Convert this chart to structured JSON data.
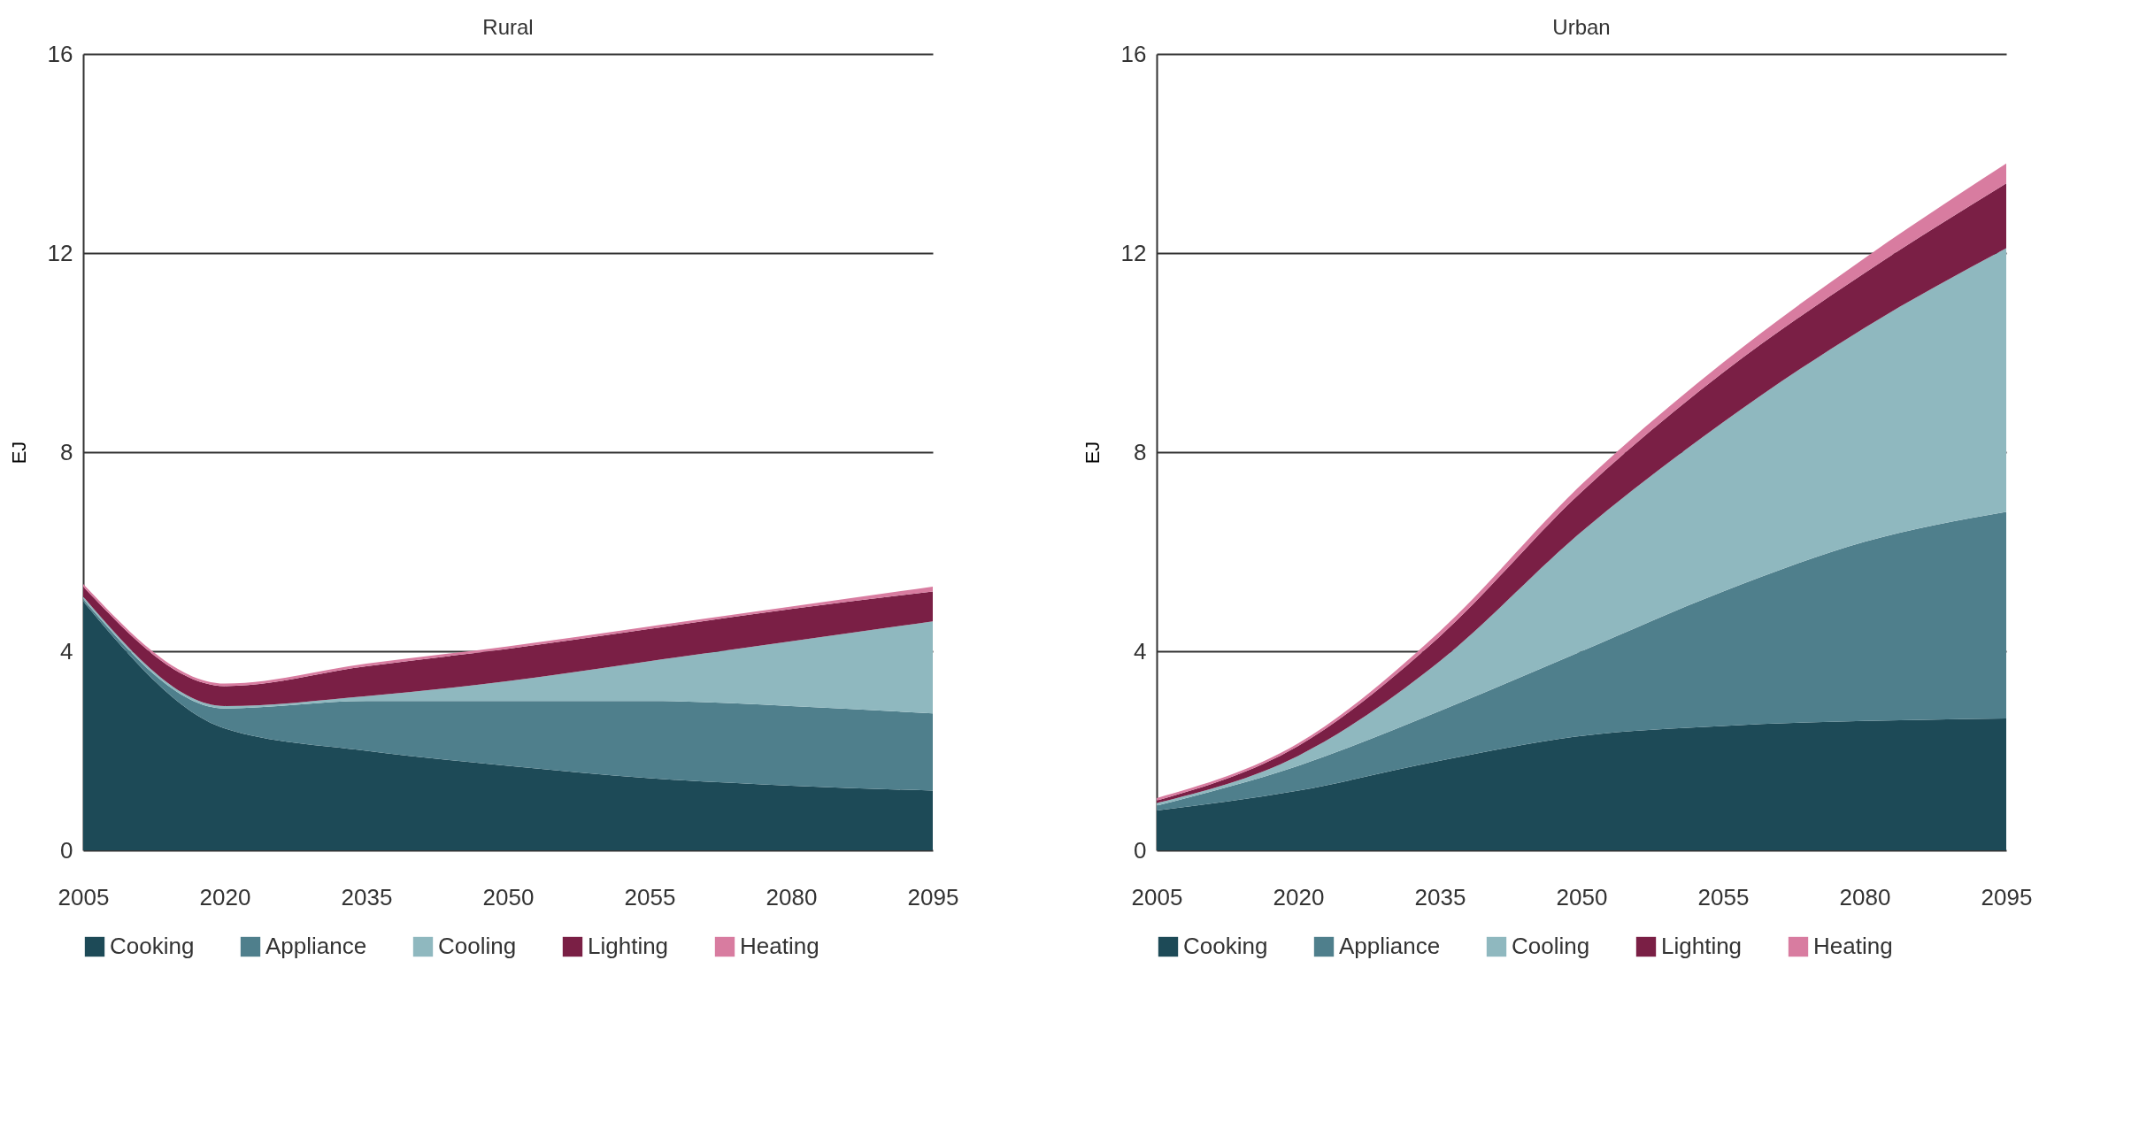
{
  "chart_data": [
    {
      "type": "area",
      "title": "Rural",
      "ylabel": "EJ",
      "categories": [
        "2005",
        "2020",
        "2035",
        "2050",
        "2055",
        "2080",
        "2095"
      ],
      "stacked": true,
      "ylim": [
        0,
        16
      ],
      "yticks": [
        0,
        4,
        8,
        12,
        16
      ],
      "grid": "y",
      "legend": "bottom",
      "series": [
        {
          "name": "Cooking",
          "color": "#1d4a57",
          "values": [
            5.0,
            2.45,
            2.0,
            1.7,
            1.45,
            1.3,
            1.2
          ]
        },
        {
          "name": "Appliance",
          "color": "#4f7f8c",
          "values": [
            0.05,
            0.4,
            1.0,
            1.3,
            1.55,
            1.6,
            1.55
          ]
        },
        {
          "name": "Cooling",
          "color": "#8fb8bf",
          "values": [
            0.05,
            0.05,
            0.1,
            0.4,
            0.8,
            1.3,
            1.85
          ]
        },
        {
          "name": "Lighting",
          "color": "#7a1f45",
          "values": [
            0.2,
            0.4,
            0.6,
            0.65,
            0.65,
            0.65,
            0.6
          ]
        },
        {
          "name": "Heating",
          "color": "#d87ca0",
          "values": [
            0.05,
            0.05,
            0.05,
            0.05,
            0.05,
            0.05,
            0.1
          ]
        }
      ]
    },
    {
      "type": "area",
      "title": "Urban",
      "ylabel": "EJ",
      "categories": [
        "2005",
        "2020",
        "2035",
        "2050",
        "2055",
        "2080",
        "2095"
      ],
      "stacked": true,
      "ylim": [
        0,
        16
      ],
      "yticks": [
        0,
        4,
        8,
        12,
        16
      ],
      "grid": "y",
      "legend": "bottom",
      "series": [
        {
          "name": "Cooking",
          "color": "#1d4a57",
          "values": [
            0.8,
            1.2,
            1.8,
            2.3,
            2.5,
            2.6,
            2.65
          ]
        },
        {
          "name": "Appliance",
          "color": "#4f7f8c",
          "values": [
            0.1,
            0.5,
            1.0,
            1.7,
            2.7,
            3.6,
            4.15
          ]
        },
        {
          "name": "Cooling",
          "color": "#8fb8bf",
          "values": [
            0.05,
            0.2,
            1.0,
            2.4,
            3.4,
            4.3,
            5.3
          ]
        },
        {
          "name": "Lighting",
          "color": "#7a1f45",
          "values": [
            0.05,
            0.2,
            0.5,
            0.8,
            1.0,
            1.1,
            1.3
          ]
        },
        {
          "name": "Heating",
          "color": "#d87ca0",
          "values": [
            0.05,
            0.05,
            0.1,
            0.15,
            0.2,
            0.3,
            0.4
          ]
        }
      ]
    }
  ]
}
